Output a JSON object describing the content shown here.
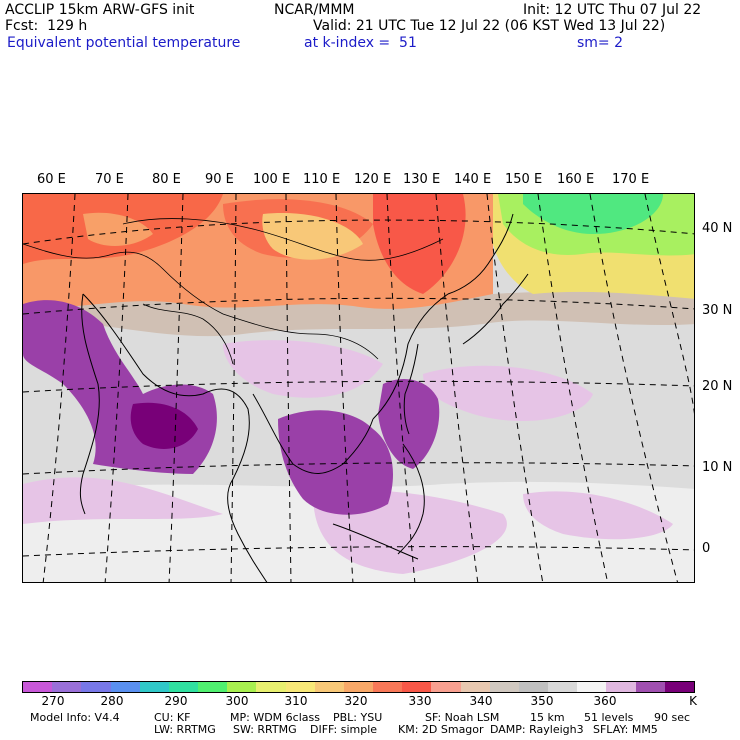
{
  "header": {
    "model": "ACCLIP 15km ARW-GFS init",
    "org": "NCAR/MMM",
    "init": "Init: 12 UTC Thu 07 Jul 22",
    "fcst": "Fcst:  129 h",
    "valid": "Valid: 21 UTC Tue 12 Jul 22 (06 KST Wed 13 Jul 22)",
    "field": "Equivalent potential temperature",
    "kindex": "at k-index =  51",
    "sm": "sm= 2"
  },
  "map": {
    "longitude_labels": [
      "60 E",
      "70 E",
      "80 E",
      "90 E",
      "100 E",
      "110 E",
      "120 E",
      "130 E",
      "140 E",
      "150 E",
      "160 E",
      "170 E"
    ],
    "latitude_labels": [
      "40 N",
      "30 N",
      "20 N",
      "10 N",
      "0"
    ]
  },
  "colorbar": {
    "colors": [
      "#c858d8",
      "#9a70d8",
      "#7878e8",
      "#5a90f0",
      "#30c8c8",
      "#30e0a0",
      "#50f070",
      "#a8f050",
      "#e8f070",
      "#f8e878",
      "#f8c878",
      "#f8a868",
      "#f87858",
      "#f85848",
      "#f8a090",
      "#e8c8b0",
      "#d0c8c0",
      "#c0c0c0",
      "#d8d8d8",
      "#f4f4f4",
      "#e0b8e0",
      "#a050b0",
      "#780078"
    ],
    "tick_labels": [
      "270",
      "280",
      "290",
      "300",
      "310",
      "320",
      "330",
      "340",
      "350",
      "360",
      "K"
    ]
  },
  "model_info": {
    "line1": [
      "Model Info: V4.4",
      "CU: KF",
      "MP: WDM 6class",
      "PBL: YSU",
      "SF: Noah LSM",
      "15 km",
      "51 levels",
      "90 sec"
    ],
    "line2": [
      "LW: RRTMG",
      "SW: RRTMG",
      "DIFF: simple",
      "KM: 2D Smagor",
      "DAMP: Rayleigh3",
      "SFLAY: MM5"
    ]
  }
}
